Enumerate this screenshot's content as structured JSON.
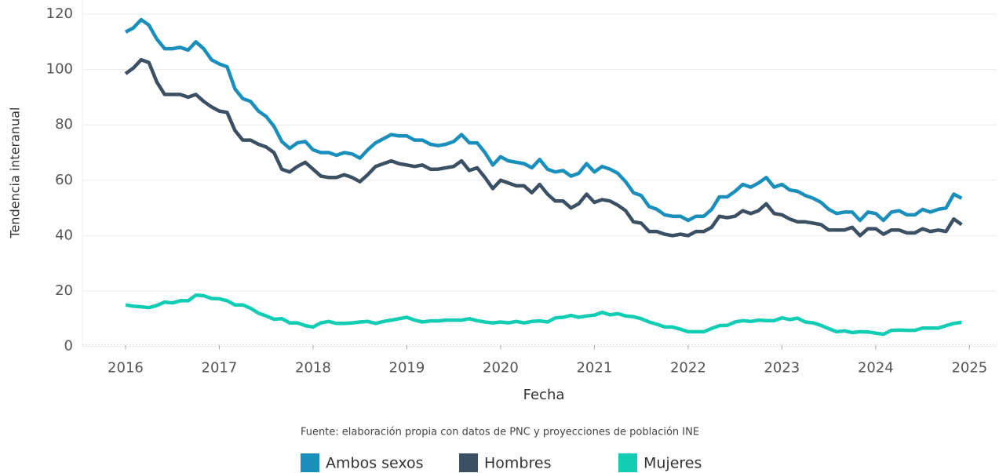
{
  "chart_data": {
    "type": "line",
    "x_label": "Fecha",
    "y_label": "Tendencia interanual",
    "caption": "Fuente: elaboración propia con datos de PNC y proyecciones de población INE",
    "xlim": [
      2015.54,
      2025.29
    ],
    "xticks": [
      2016,
      2017,
      2018,
      2019,
      2020,
      2021,
      2022,
      2023,
      2024,
      2025
    ],
    "ylim": [
      0,
      120
    ],
    "yticks": [
      0,
      20,
      40,
      60,
      80,
      100,
      120
    ],
    "grid": true,
    "legend": "bottom",
    "x": [
      2016,
      2016.083,
      2016.167,
      2016.25,
      2016.333,
      2016.417,
      2016.5,
      2016.583,
      2016.667,
      2016.75,
      2016.833,
      2016.917,
      2017,
      2017.083,
      2017.167,
      2017.25,
      2017.333,
      2017.417,
      2017.5,
      2017.583,
      2017.667,
      2017.75,
      2017.833,
      2017.917,
      2018,
      2018.083,
      2018.167,
      2018.25,
      2018.333,
      2018.417,
      2018.5,
      2018.583,
      2018.667,
      2018.75,
      2018.833,
      2018.917,
      2019,
      2019.083,
      2019.167,
      2019.25,
      2019.333,
      2019.417,
      2019.5,
      2019.583,
      2019.667,
      2019.75,
      2019.833,
      2019.917,
      2020,
      2020.083,
      2020.167,
      2020.25,
      2020.333,
      2020.417,
      2020.5,
      2020.583,
      2020.667,
      2020.75,
      2020.833,
      2020.917,
      2021,
      2021.083,
      2021.167,
      2021.25,
      2021.333,
      2021.417,
      2021.5,
      2021.583,
      2021.667,
      2021.75,
      2021.833,
      2021.917,
      2022,
      2022.083,
      2022.167,
      2022.25,
      2022.333,
      2022.417,
      2022.5,
      2022.583,
      2022.667,
      2022.75,
      2022.833,
      2022.917,
      2023,
      2023.083,
      2023.167,
      2023.25,
      2023.333,
      2023.417,
      2023.5,
      2023.583,
      2023.667,
      2023.75,
      2023.833,
      2023.917,
      2024,
      2024.083,
      2024.167,
      2024.25,
      2024.333,
      2024.417,
      2024.5,
      2024.583,
      2024.667,
      2024.75,
      2024.833,
      2024.917
    ],
    "series": [
      {
        "name": "Ambos sexos",
        "color": "#1a8fbb",
        "values": [
          113.5,
          115,
          118,
          116,
          111,
          107.5,
          107.5,
          108,
          107,
          110,
          107.5,
          103.5,
          102,
          101,
          93,
          89.5,
          88.5,
          85,
          83,
          79.5,
          74,
          71.5,
          73.5,
          74,
          71,
          70,
          70,
          69,
          70,
          69.5,
          68,
          71,
          73.5,
          75,
          76.5,
          76,
          76,
          74.5,
          74.5,
          73,
          72.5,
          73,
          74,
          76.5,
          73.5,
          73.5,
          70,
          65.5,
          68.5,
          67,
          66.5,
          66,
          64.5,
          67.5,
          64,
          63,
          63.5,
          61.5,
          62.5,
          66,
          63,
          65,
          64,
          62.5,
          59.5,
          55.5,
          54.5,
          50.5,
          49.5,
          47.5,
          47,
          47,
          45.5,
          47,
          47,
          49.5,
          54,
          54,
          56,
          58.5,
          57.5,
          59,
          61,
          57.5,
          58.5,
          56.5,
          56,
          54.5,
          53.5,
          52,
          49.5,
          48,
          48.5,
          48.5,
          45.5,
          48.5,
          48,
          45.5,
          48.5,
          49,
          47.5,
          47.5,
          49.5,
          48.5,
          49.5,
          50,
          55,
          53.5
        ]
      },
      {
        "name": "Hombres",
        "color": "#3c5064",
        "values": [
          98.5,
          100.5,
          103.5,
          102.5,
          95.5,
          91,
          91,
          91,
          90,
          91,
          88.5,
          86.5,
          85,
          84.5,
          78,
          74.5,
          74.5,
          73,
          72,
          70,
          64,
          63,
          65,
          66.5,
          64,
          61.5,
          61,
          61,
          62,
          61,
          59.5,
          62,
          65,
          66,
          67,
          66,
          65.5,
          65,
          65.5,
          64,
          64,
          64.5,
          65,
          67,
          63.5,
          64.5,
          61,
          57,
          60,
          59,
          58,
          58,
          55.5,
          58.5,
          55,
          52.5,
          52.5,
          50,
          51.5,
          55,
          52,
          53,
          52.5,
          51,
          49,
          45,
          44.5,
          41.5,
          41.5,
          40.5,
          40,
          40.5,
          40,
          41.5,
          41.5,
          43,
          47,
          46.5,
          47,
          49,
          48,
          49,
          51.5,
          48,
          47.5,
          46,
          45,
          45,
          44.5,
          44,
          42,
          42,
          42,
          43,
          40,
          42.5,
          42.5,
          40.5,
          42,
          42,
          41,
          41,
          42.5,
          41.5,
          42,
          41.5,
          46,
          44
        ]
      },
      {
        "name": "Mujeres",
        "color": "#12cdb4",
        "values": [
          15,
          14.5,
          14.3,
          14,
          14.8,
          16,
          15.7,
          16.5,
          16.5,
          18.5,
          18.3,
          17.3,
          17.2,
          16.5,
          15,
          15,
          13.8,
          12,
          11,
          9.8,
          10,
          8.5,
          8.5,
          7.5,
          7,
          8.5,
          9,
          8.3,
          8.3,
          8.5,
          8.8,
          9,
          8.3,
          9,
          9.5,
          10,
          10.5,
          9.5,
          8.8,
          9.2,
          9.2,
          9.5,
          9.5,
          9.5,
          10,
          9.3,
          8.8,
          8.5,
          8.8,
          8.5,
          9,
          8.5,
          9,
          9.2,
          8.8,
          10.3,
          10.5,
          11.2,
          10.5,
          11,
          11.3,
          12.3,
          11.4,
          11.8,
          11,
          10.7,
          10,
          8.8,
          8,
          7,
          7,
          6.2,
          5.3,
          5.3,
          5.3,
          6.5,
          7.5,
          7.6,
          8.8,
          9.3,
          9,
          9.5,
          9.3,
          9.3,
          10.3,
          9.7,
          10.2,
          8.8,
          8.5,
          7.6,
          6.4,
          5.3,
          5.6,
          5,
          5.3,
          5.2,
          4.8,
          4.4,
          5.8,
          5.9,
          5.8,
          5.8,
          6.6,
          6.6,
          6.6,
          7.5,
          8.3,
          8.7
        ]
      }
    ]
  }
}
